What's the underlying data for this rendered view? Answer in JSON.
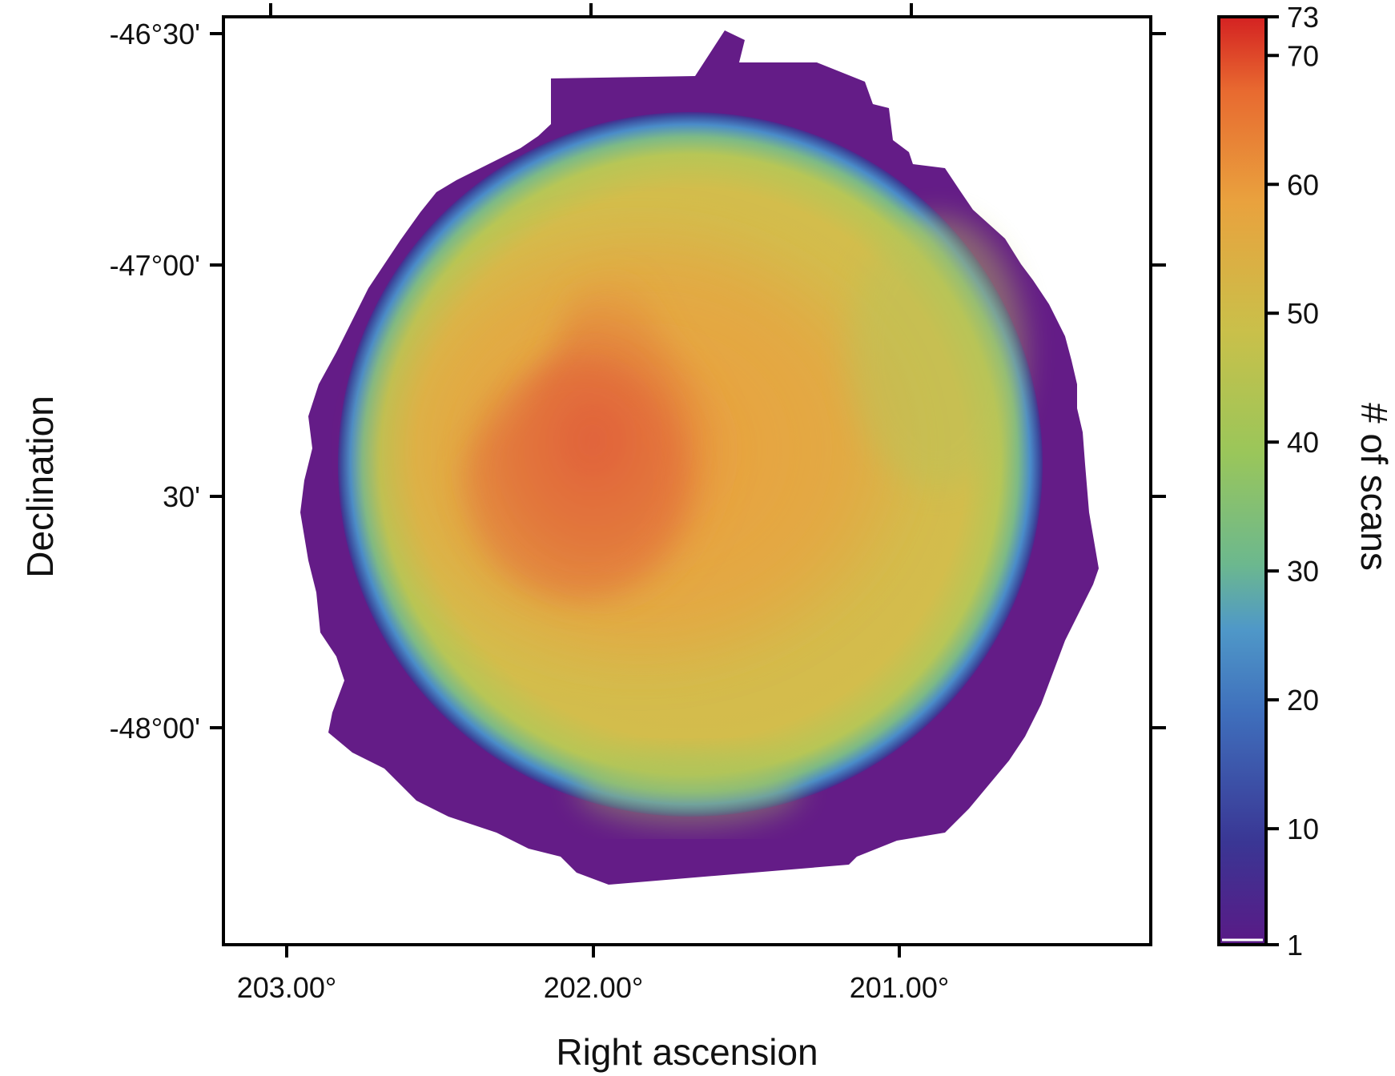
{
  "chart_data": {
    "type": "heatmap",
    "title": "",
    "xlabel": "Right ascension",
    "ylabel": "Declination",
    "x_ticks": [
      "203.00°",
      "202.00°",
      "201.00°"
    ],
    "y_ticks": [
      "-46°30'",
      "-47°00'",
      "30'",
      "-48°00'"
    ],
    "colorbar": {
      "label": "# of scans",
      "min": 1,
      "max": 73,
      "ticks": [
        "1",
        "10",
        "20",
        "30",
        "40",
        "50",
        "60",
        "70",
        "73"
      ],
      "tick_values": [
        1,
        10,
        20,
        30,
        40,
        50,
        60,
        70,
        73
      ],
      "colors": [
        "#5a1a86",
        "#3a3694",
        "#3f6fbc",
        "#4f98c8",
        "#6cb88e",
        "#9ac65a",
        "#c9c04a",
        "#e9a23e",
        "#e86a30",
        "#d42222"
      ]
    },
    "map": {
      "description_values": {
        "edge_scans": 5,
        "ring_scans": 22,
        "interior_scans": 52,
        "peak_region_scans": 66
      },
      "colors": {
        "edge": "#641c87",
        "ring": "#4a8cc9",
        "interior": "#d5b64a",
        "warm": "#eba03e",
        "peak": "#e0583a"
      }
    }
  }
}
